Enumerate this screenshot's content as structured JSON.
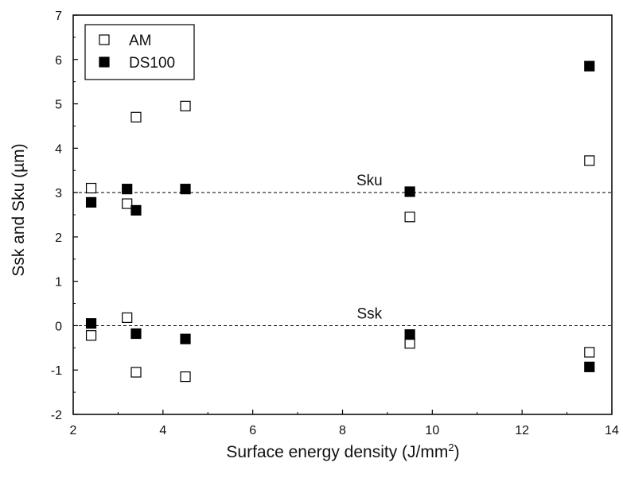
{
  "chart_data": {
    "type": "scatter",
    "xlabel": "Surface energy density (J/mm",
    "xlabel_sup": "2",
    "xlabel_suffix": ")",
    "ylabel": "Ssk and Sku (µm)",
    "xlim": [
      2,
      14
    ],
    "ylim": [
      -2,
      7
    ],
    "xticks": [
      2,
      4,
      6,
      8,
      10,
      12,
      14
    ],
    "yticks": [
      -2,
      -1,
      0,
      1,
      2,
      3,
      4,
      5,
      6,
      7
    ],
    "grid": false,
    "legend_position": "top-left",
    "series": [
      {
        "name": "AM",
        "marker": "open-square",
        "color": "#000000",
        "points": [
          {
            "x": 2.4,
            "y": 3.1
          },
          {
            "x": 3.2,
            "y": 2.75
          },
          {
            "x": 3.4,
            "y": 4.7
          },
          {
            "x": 4.5,
            "y": 4.95
          },
          {
            "x": 9.5,
            "y": 2.45
          },
          {
            "x": 13.5,
            "y": 3.72
          },
          {
            "x": 2.4,
            "y": -0.22
          },
          {
            "x": 3.2,
            "y": 0.18
          },
          {
            "x": 3.4,
            "y": -1.05
          },
          {
            "x": 4.5,
            "y": -1.15
          },
          {
            "x": 9.5,
            "y": -0.4
          },
          {
            "x": 13.5,
            "y": -0.6
          }
        ]
      },
      {
        "name": "DS100",
        "marker": "filled-square",
        "color": "#000000",
        "points": [
          {
            "x": 2.4,
            "y": 2.78
          },
          {
            "x": 3.2,
            "y": 3.08
          },
          {
            "x": 3.4,
            "y": 2.6
          },
          {
            "x": 4.5,
            "y": 3.08
          },
          {
            "x": 9.5,
            "y": 3.02
          },
          {
            "x": 13.5,
            "y": 5.85
          },
          {
            "x": 2.4,
            "y": 0.05
          },
          {
            "x": 3.4,
            "y": -0.18
          },
          {
            "x": 4.5,
            "y": -0.3
          },
          {
            "x": 9.5,
            "y": -0.2
          },
          {
            "x": 13.5,
            "y": -0.93
          }
        ]
      }
    ],
    "reference_lines": [
      {
        "y": 3,
        "label": "Sku",
        "label_x": 8.6,
        "style": "dashed"
      },
      {
        "y": 0,
        "label": "Ssk",
        "label_x": 8.6,
        "style": "dashed"
      }
    ]
  }
}
